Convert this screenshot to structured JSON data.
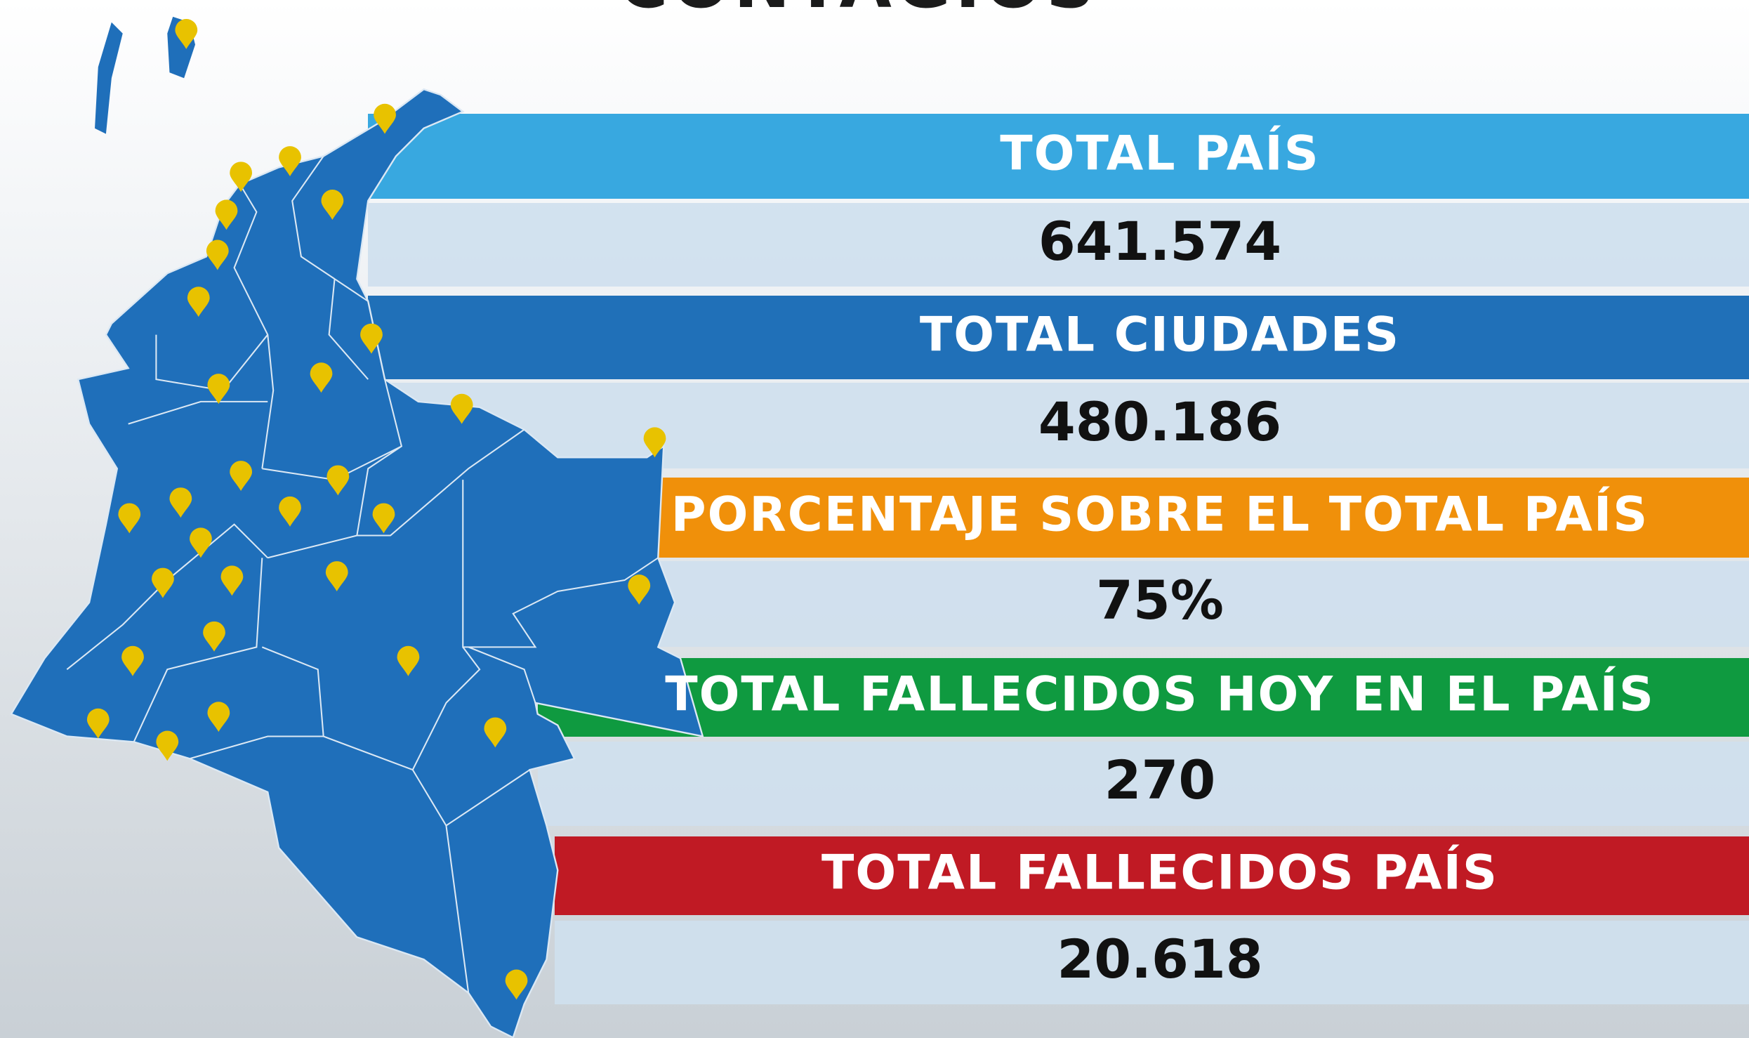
{
  "title": "CONTAGIOS",
  "rows": [
    {
      "label": "TOTAL PAÍS",
      "value": "641.574"
    },
    {
      "label": "TOTAL CIUDADES",
      "value": "480.186"
    },
    {
      "label": "PORCENTAJE SOBRE EL TOTAL PAÍS",
      "value": "75%"
    },
    {
      "label": "TOTAL FALLECIDOS HOY EN EL PAÍS",
      "value": "270"
    },
    {
      "label": "TOTAL FALLECIDOS PAÍS",
      "value": "20.618"
    }
  ]
}
